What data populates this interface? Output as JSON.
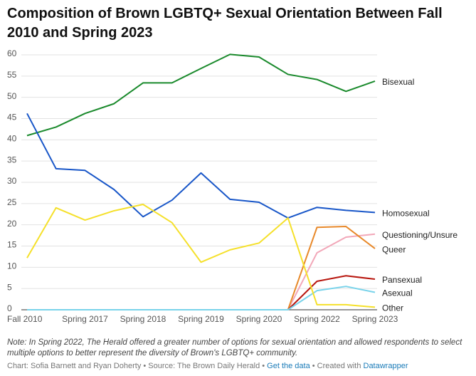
{
  "chart_data": {
    "type": "line",
    "title": "Composition of Brown LGBTQ+ Sexual Orientation Between Fall 2010 and Spring 2023",
    "categories": [
      "Fall 2010",
      null,
      "Spring 2017",
      null,
      "Spring 2018",
      null,
      "Spring 2019",
      null,
      "Spring 2020",
      null,
      "Spring 2022",
      null,
      "Spring 2023"
    ],
    "ylim": [
      0,
      60
    ],
    "yticks": [
      0,
      5,
      10,
      15,
      20,
      25,
      30,
      35,
      40,
      45,
      50,
      55,
      60
    ],
    "grid": true,
    "series": [
      {
        "name": "Bisexual",
        "color": "#1a8a2c",
        "values": [
          41,
          43,
          46.2,
          48.5,
          53.4,
          53.4,
          56.8,
          60.1,
          59.5,
          55.4,
          54.2,
          51.4,
          53.8
        ]
      },
      {
        "name": "Homosexual",
        "color": "#1856c8",
        "values": [
          46.2,
          33.2,
          32.8,
          28.3,
          21.9,
          25.8,
          32.2,
          26,
          25.3,
          21.6,
          24.1,
          23.4,
          22.9
        ]
      },
      {
        "name": "Questioning/Unsure",
        "color": "#f2a7b8",
        "values": [
          0,
          0,
          0,
          0,
          0,
          0,
          0,
          0,
          0,
          0,
          13.4,
          17.1,
          17.8
        ]
      },
      {
        "name": "Queer",
        "color": "#e8892a",
        "values": [
          0,
          0,
          0,
          0,
          0,
          0,
          0,
          0,
          0,
          0,
          19.4,
          19.6,
          14.4
        ]
      },
      {
        "name": "Pansexual",
        "color": "#b8170f",
        "values": [
          0,
          0,
          0,
          0,
          0,
          0,
          0,
          0,
          0,
          0,
          6.7,
          8,
          7.2
        ]
      },
      {
        "name": "Asexual",
        "color": "#79d3ea",
        "values": [
          0,
          0,
          0,
          0,
          0,
          0,
          0,
          0,
          0,
          0,
          4.5,
          5.5,
          4.1
        ]
      },
      {
        "name": "Other",
        "color": "#f5e02a",
        "values": [
          12.2,
          24,
          21.1,
          23.3,
          24.8,
          20.5,
          11.2,
          14.1,
          15.7,
          21.6,
          1.2,
          1.2,
          0.6
        ]
      }
    ],
    "note": "Note: In Spring 2022, The Herald offered a greater number of options for sexual orientation and allowed respondents to select multiple options to better represent the diversity of Brown's LGBTQ+ community.",
    "footer": {
      "credit": "Chart: Sofia Barnett and Ryan Doherty • Source: The Brown Daily Herald • ",
      "data_link": "Get the data",
      "created": " • Created with ",
      "tool_link": "Datawrapper"
    }
  }
}
